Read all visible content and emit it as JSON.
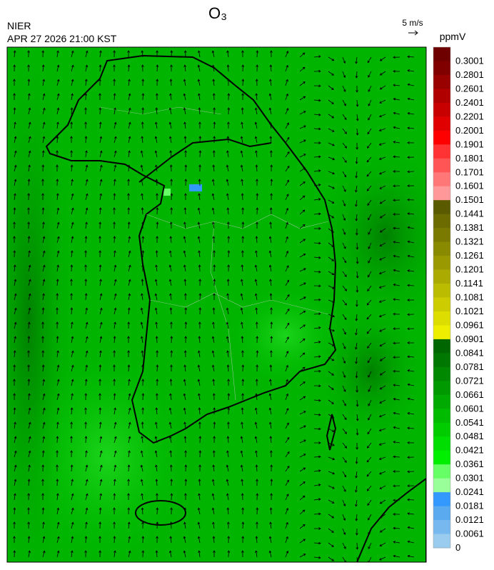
{
  "header": {
    "title": "O₃",
    "agency": "NIER",
    "datetime": "APR 27 2026 21:00 KST"
  },
  "wind_reference": {
    "label": "5 m/s"
  },
  "colorbar": {
    "unit": "ppmV",
    "labels": [
      0.3001,
      0.2801,
      0.2601,
      0.2401,
      0.2201,
      0.2001,
      0.1901,
      0.1801,
      0.1701,
      0.1601,
      0.1501,
      0.1441,
      0.1381,
      0.1321,
      0.1261,
      0.1201,
      0.1141,
      0.1081,
      0.1021,
      0.0961,
      0.0901,
      0.0841,
      0.0781,
      0.0721,
      0.0661,
      0.0601,
      0.0541,
      0.0481,
      0.0421,
      0.0361,
      0.0301,
      0.0241,
      0.0181,
      0.0121,
      0.0061,
      0
    ],
    "colors": [
      "#6e0000",
      "#800000",
      "#990000",
      "#b00000",
      "#c80000",
      "#e00000",
      "#ff0000",
      "#ff3333",
      "#ff5555",
      "#ff7777",
      "#ff9999",
      "#5a5a00",
      "#6b6b00",
      "#7a7a00",
      "#8a8a00",
      "#9a9a00",
      "#aaaa00",
      "#bbbb00",
      "#cccc00",
      "#dddd00",
      "#eeee00",
      "#006600",
      "#007700",
      "#008800",
      "#009900",
      "#00aa00",
      "#00bb00",
      "#00cc00",
      "#00dd00",
      "#00ee00",
      "#66ff66",
      "#99ff99",
      "#3399ff",
      "#5aaaf0",
      "#77b8ee",
      "#99ccee"
    ]
  }
}
